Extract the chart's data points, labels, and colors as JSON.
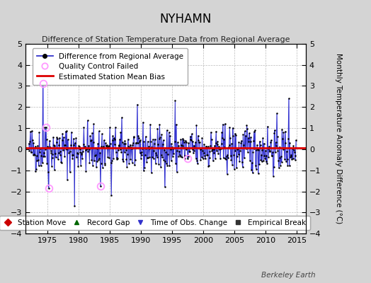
{
  "title": "NYHAMN",
  "subtitle": "Difference of Station Temperature Data from Regional Average",
  "ylabel_right": "Monthly Temperature Anomaly Difference (°C)",
  "xlim": [
    1971.5,
    2016.5
  ],
  "ylim": [
    -4,
    5
  ],
  "yticks": [
    -4,
    -3,
    -2,
    -1,
    0,
    1,
    2,
    3,
    4,
    5
  ],
  "xticks": [
    1975,
    1980,
    1985,
    1990,
    1995,
    2000,
    2005,
    2010,
    2015
  ],
  "mean_bias": 0.05,
  "fig_bg_color": "#d4d4d4",
  "plot_bg_color": "#ffffff",
  "line_color": "#3333cc",
  "line_fill_color": "#8888ff",
  "dot_color": "#000000",
  "bias_color": "#dd0000",
  "qc_edge_color": "#ff99ff",
  "watermark": "Berkeley Earth",
  "seed": 42,
  "n_months": 516,
  "t_start": 1972.0
}
